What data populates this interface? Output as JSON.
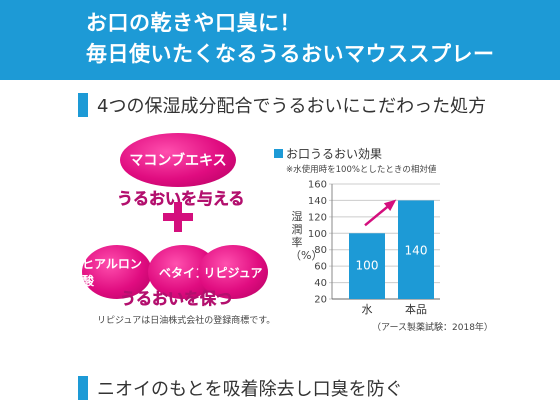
{
  "banner": {
    "line1": "お口の乾きや口臭に！",
    "line2": "毎日使いたくなるうるおいマウススプレー"
  },
  "section1": {
    "title": "4つの保湿成分配合でうるおいにこだわった処方"
  },
  "ingredients": {
    "top": "マコンブエキス",
    "top_caption": "うるおいを与える",
    "bottom": [
      "ヒアルロン酸",
      "ベタイン",
      "リピジュア"
    ],
    "bottom_caption": "うるおいを保つ"
  },
  "trademark_note": "リピジュアは日油株式会社の登録商標です。",
  "chart_data": {
    "type": "bar",
    "title": "お口うるおい効果",
    "note": "※水使用時を100%としたときの相対値",
    "ylabel": "湿潤率（%）",
    "categories": [
      "水",
      "本品"
    ],
    "values": [
      100,
      140
    ],
    "ylim": [
      20,
      160
    ],
    "yticks": [
      20,
      40,
      60,
      80,
      100,
      120,
      140,
      160
    ],
    "source": "（アース製薬試験：2018年）",
    "bar_color": "#1d9ad6",
    "arrow_color": "#d40f7d"
  },
  "section2": {
    "title": "ニオイのもとを吸着除去し口臭を防ぐ"
  }
}
